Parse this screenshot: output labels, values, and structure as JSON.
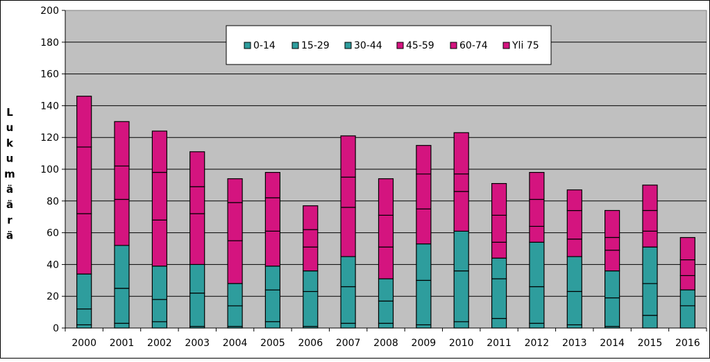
{
  "chart_data": {
    "type": "bar",
    "stacked": true,
    "categories": [
      "2000",
      "2001",
      "2002",
      "2003",
      "2004",
      "2005",
      "2006",
      "2007",
      "2008",
      "2009",
      "2010",
      "2011",
      "2012",
      "2013",
      "2014",
      "2015",
      "2016"
    ],
    "series": [
      {
        "name": "0-14",
        "values": [
          2,
          3,
          4,
          1,
          1,
          4,
          1,
          3,
          3,
          2,
          4,
          6,
          3,
          2,
          1,
          8,
          0
        ]
      },
      {
        "name": "15-29",
        "values": [
          10,
          22,
          14,
          21,
          13,
          20,
          22,
          23,
          14,
          28,
          32,
          25,
          23,
          21,
          18,
          20,
          14
        ]
      },
      {
        "name": "30-44",
        "values": [
          22,
          27,
          21,
          18,
          14,
          15,
          13,
          19,
          14,
          23,
          25,
          13,
          28,
          22,
          17,
          23,
          10
        ]
      },
      {
        "name": "45-59",
        "values": [
          38,
          29,
          29,
          32,
          27,
          22,
          15,
          31,
          20,
          22,
          25,
          10,
          10,
          11,
          13,
          10,
          9
        ]
      },
      {
        "name": "60-74",
        "values": [
          42,
          21,
          30,
          17,
          24,
          21,
          11,
          19,
          20,
          22,
          11,
          17,
          17,
          18,
          8,
          13,
          10
        ]
      },
      {
        "name": "Yli 75",
        "values": [
          32,
          28,
          26,
          22,
          15,
          16,
          15,
          26,
          23,
          18,
          26,
          20,
          17,
          13,
          17,
          16,
          14
        ]
      }
    ],
    "ylabel": "Lukumäärä",
    "ylim": [
      0,
      200
    ],
    "yticks": [
      "0",
      "20",
      "40",
      "60",
      "80",
      "100",
      "120",
      "140",
      "160",
      "180",
      "200"
    ],
    "grid": true,
    "legend_position": "top-center",
    "colors": {
      "young": "#2e9d9d",
      "old": "#d4147f",
      "plot_background": "#c0c0c0",
      "outline": "#000000"
    }
  }
}
